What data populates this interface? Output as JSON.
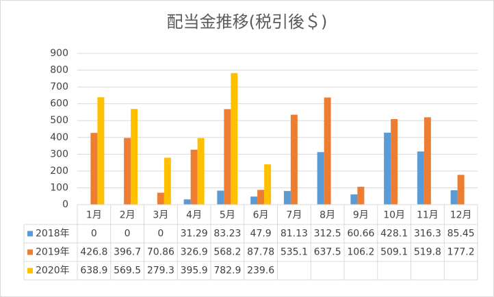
{
  "chart_data": {
    "type": "bar",
    "title": "配当金推移(税引後＄)",
    "categories": [
      "1月",
      "2月",
      "3月",
      "4月",
      "5月",
      "6月",
      "7月",
      "8月",
      "9月",
      "10月",
      "11月",
      "12月"
    ],
    "series": [
      {
        "name": "2018年",
        "color": "#5b9bd5",
        "values": [
          0,
          0,
          0,
          31.29,
          83.23,
          47.9,
          81.13,
          312.5,
          60.66,
          428.1,
          316.3,
          85.45
        ]
      },
      {
        "name": "2019年",
        "color": "#ed7d31",
        "values": [
          426.8,
          396.7,
          70.86,
          326.9,
          568.2,
          87.78,
          535.1,
          637.5,
          106.2,
          509.1,
          519.8,
          177.2
        ]
      },
      {
        "name": "2020年",
        "color": "#ffc000",
        "values": [
          638.9,
          569.5,
          279.3,
          395.9,
          782.9,
          239.6,
          null,
          null,
          null,
          null,
          null,
          null
        ]
      }
    ],
    "ylim": [
      0,
      900
    ],
    "yticks": [
      0,
      100,
      200,
      300,
      400,
      500,
      600,
      700,
      800,
      900
    ],
    "grid": true
  }
}
